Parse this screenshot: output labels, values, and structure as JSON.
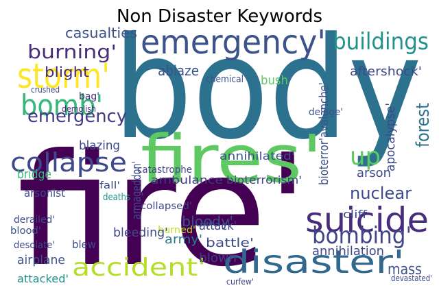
{
  "chart_data": {
    "type": "wordcloud",
    "title": "Non Disaster Keywords",
    "words": [
      "body",
      "fire'",
      "fires'",
      "emergency'",
      "storm'",
      "bomb'",
      "suicide",
      "disaster'",
      "accident'",
      "buildings",
      "burning'",
      "collapse",
      "bombing'",
      "up",
      "emergency",
      "forest",
      "ablaze",
      "annihilated'",
      "nuclear",
      "arson",
      "aftershock'",
      "blight",
      "casualties",
      "ambulance",
      "bioterrorism'",
      "bloody'",
      "army'",
      "attack'",
      "battle'",
      "blown",
      "burned'",
      "annihilation",
      "mass",
      "airplane",
      "attacked'",
      "crushed",
      "bag'",
      "demolish",
      "blazing",
      "bridge",
      "catastrophe",
      "fall'",
      "deaths",
      "collapsed'",
      "cliff",
      "blood'",
      "derailed'",
      "desolate'",
      "curfew'",
      "devastated'",
      "bleeding'",
      "chemical",
      "bush",
      "deluge'",
      "arsonist",
      "apocalypse'",
      "bioterror'avalanche'",
      "armageddon'",
      "blew"
    ]
  }
}
